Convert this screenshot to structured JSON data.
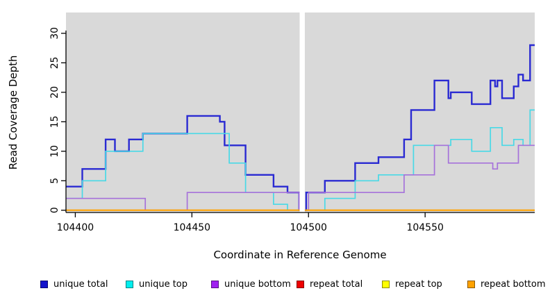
{
  "chart_data": {
    "type": "line",
    "subtype": "step",
    "title": "",
    "xlabel": "Coordinate in Reference Genome",
    "ylabel": "Read Coverage Depth",
    "xlim": [
      104396,
      104597
    ],
    "ylim": [
      0,
      33.5
    ],
    "x_ticks": [
      "104400",
      "104450",
      "104500",
      "104550"
    ],
    "x_tick_values": [
      104400,
      104450,
      104500,
      104550
    ],
    "y_ticks": [
      "0",
      "5",
      "10",
      "15",
      "20",
      "25",
      "30"
    ],
    "y_tick_values": [
      0,
      5,
      10,
      15,
      20,
      25,
      30
    ],
    "grid": "off",
    "panel_background": "#d9d9d9",
    "gap_band": {
      "from": 104496.2,
      "to": 104498.4,
      "color": "#ffffff"
    },
    "series": [
      {
        "name": "unique total",
        "color": "#2a2ad2",
        "stroke_width": 2.4,
        "steps": [
          [
            104396,
            4
          ],
          [
            104403,
            7
          ],
          [
            104413,
            12
          ],
          [
            104417,
            10
          ],
          [
            104423,
            12
          ],
          [
            104429,
            13
          ],
          [
            104448,
            16
          ],
          [
            104462,
            15
          ],
          [
            104464,
            11
          ],
          [
            104473,
            6
          ],
          [
            104485,
            4
          ],
          [
            104491,
            3
          ],
          [
            104496,
            0
          ],
          [
            104499,
            3
          ],
          [
            104507,
            5
          ],
          [
            104520,
            8
          ],
          [
            104530,
            9
          ],
          [
            104541,
            12
          ],
          [
            104544,
            17
          ],
          [
            104554,
            22
          ],
          [
            104560,
            19
          ],
          [
            104561,
            20
          ],
          [
            104570,
            18
          ],
          [
            104578,
            22
          ],
          [
            104580,
            21
          ],
          [
            104581,
            22
          ],
          [
            104583,
            19
          ],
          [
            104588,
            21
          ],
          [
            104590,
            23
          ],
          [
            104592,
            22
          ],
          [
            104595,
            28
          ]
        ]
      },
      {
        "name": "unique top",
        "color": "#49d9e6",
        "stroke_width": 1.7,
        "steps": [
          [
            104396,
            2
          ],
          [
            104403,
            5
          ],
          [
            104413,
            10
          ],
          [
            104429,
            13
          ],
          [
            104466,
            8
          ],
          [
            104473,
            3
          ],
          [
            104485,
            1
          ],
          [
            104491,
            0
          ],
          [
            104507,
            2
          ],
          [
            104520,
            5
          ],
          [
            104530,
            6
          ],
          [
            104545,
            11
          ],
          [
            104561,
            12
          ],
          [
            104570,
            10
          ],
          [
            104578,
            14
          ],
          [
            104583,
            11
          ],
          [
            104588,
            12
          ],
          [
            104592,
            11
          ],
          [
            104595,
            17
          ]
        ]
      },
      {
        "name": "unique bottom",
        "color": "#a672da",
        "stroke_width": 1.7,
        "steps": [
          [
            104396,
            2
          ],
          [
            104430,
            0
          ],
          [
            104448,
            3
          ],
          [
            104496,
            0
          ],
          [
            104500,
            3
          ],
          [
            104541,
            6
          ],
          [
            104554,
            11
          ],
          [
            104560,
            8
          ],
          [
            104579,
            7
          ],
          [
            104581,
            8
          ],
          [
            104590,
            11
          ]
        ]
      },
      {
        "name": "repeat total",
        "color": "#ee0000",
        "stroke_width": 1.7,
        "steps": [
          [
            104396,
            0
          ]
        ]
      },
      {
        "name": "repeat top",
        "color": "#ffff00",
        "stroke_width": 1.7,
        "steps": [
          [
            104396,
            0
          ]
        ]
      },
      {
        "name": "repeat bottom",
        "color": "#ffa200",
        "stroke_width": 2.0,
        "steps": [
          [
            104396,
            0
          ]
        ]
      }
    ],
    "legend": [
      {
        "label": "unique total",
        "color": "#1414cc"
      },
      {
        "label": "unique top",
        "color": "#00eeee"
      },
      {
        "label": "unique bottom",
        "color": "#a020f0"
      },
      {
        "label": "repeat total",
        "color": "#ee0000"
      },
      {
        "label": "repeat top",
        "color": "#ffff00"
      },
      {
        "label": "repeat bottom",
        "color": "#ffa200"
      }
    ],
    "legend_position": "bottom"
  }
}
